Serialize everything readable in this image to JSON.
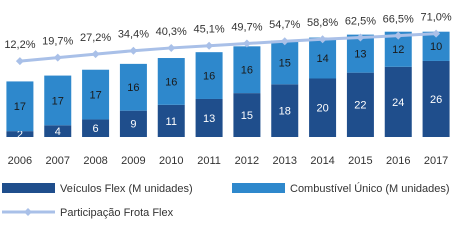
{
  "chart_data": {
    "type": "bar",
    "stacked": true,
    "categories": [
      "2006",
      "2007",
      "2008",
      "2009",
      "2010",
      "2011",
      "2012",
      "2013",
      "2014",
      "2015",
      "2016",
      "2017"
    ],
    "series": [
      {
        "name": "Veículos Flex (M unidades)",
        "color": "#1f4e8c",
        "values": [
          2,
          4,
          6,
          9,
          11,
          13,
          15,
          18,
          20,
          22,
          24,
          26
        ]
      },
      {
        "name": "Combustível Único (M unidades)",
        "color": "#2e88cc",
        "values": [
          17,
          17,
          17,
          16,
          16,
          16,
          16,
          15,
          14,
          13,
          12,
          10
        ]
      },
      {
        "name": "Participação Frota Flex",
        "type": "line",
        "axis": "y2",
        "color": "#a9c0e8",
        "values": [
          12.2,
          19.7,
          27.2,
          34.4,
          40.3,
          45.1,
          49.7,
          54.7,
          58.8,
          62.5,
          66.5,
          71.0
        ],
        "value_labels": [
          "12,2%",
          "19,7%",
          "27,2%",
          "34,4%",
          "40,3%",
          "45,1%",
          "49,7%",
          "54,7%",
          "58,8%",
          "62,5%",
          "66,5%",
          "71,0%"
        ]
      }
    ],
    "ylim": [
      0,
      40
    ],
    "y2lim": [
      -150,
      100
    ]
  }
}
